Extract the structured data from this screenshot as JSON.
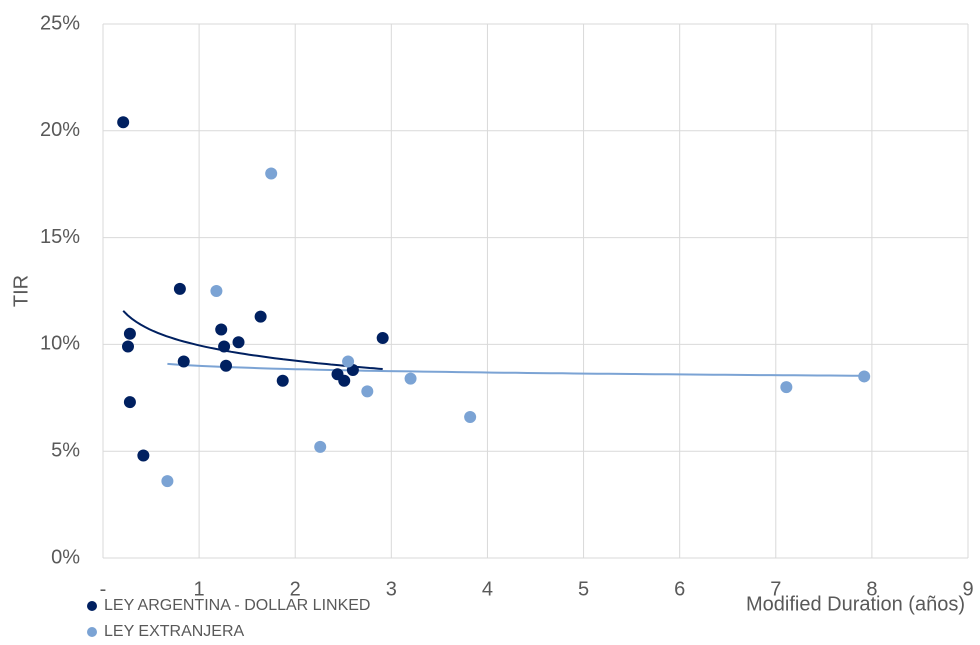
{
  "chart_data": {
    "type": "scatter",
    "x_label": "Modified Duration (años)",
    "y_label": "TIR",
    "xlim": [
      0,
      9
    ],
    "xticks": [
      {
        "value": 0,
        "label": "-"
      },
      1,
      2,
      3,
      4,
      5,
      6,
      7,
      8,
      9
    ],
    "ylim": [
      0,
      25
    ],
    "yticks": [
      {
        "value": 0,
        "label": "0%"
      },
      {
        "value": 5,
        "label": "5%"
      },
      {
        "value": 10,
        "label": "10%"
      },
      {
        "value": 15,
        "label": "15%"
      },
      {
        "value": 20,
        "label": "20%"
      },
      {
        "value": 25,
        "label": "25%"
      }
    ],
    "grid": true,
    "legend": "bottom-left",
    "trendline": "logarithmic",
    "series": [
      {
        "name": "LEY ARGENTINA - DOLLAR LINKED",
        "color": "#002060",
        "x": [
          0.21,
          0.26,
          0.28,
          0.28,
          0.42,
          0.8,
          0.84,
          1.23,
          1.26,
          1.28,
          1.41,
          1.64,
          1.87,
          2.44,
          2.51,
          2.6,
          2.91
        ],
        "values": [
          20.4,
          9.9,
          10.5,
          7.3,
          4.8,
          12.6,
          9.2,
          10.7,
          9.9,
          9.0,
          10.1,
          11.3,
          8.3,
          8.6,
          8.3,
          8.8,
          10.3
        ]
      },
      {
        "name": "LEY EXTRANJERA",
        "color": "#7ba3d4",
        "x": [
          1.75,
          1.18,
          0.67,
          2.26,
          2.55,
          2.75,
          3.2,
          3.82,
          7.11,
          7.92
        ],
        "values": [
          18.0,
          12.5,
          3.6,
          5.2,
          9.2,
          7.8,
          8.4,
          6.6,
          8.0,
          8.5
        ]
      }
    ]
  }
}
